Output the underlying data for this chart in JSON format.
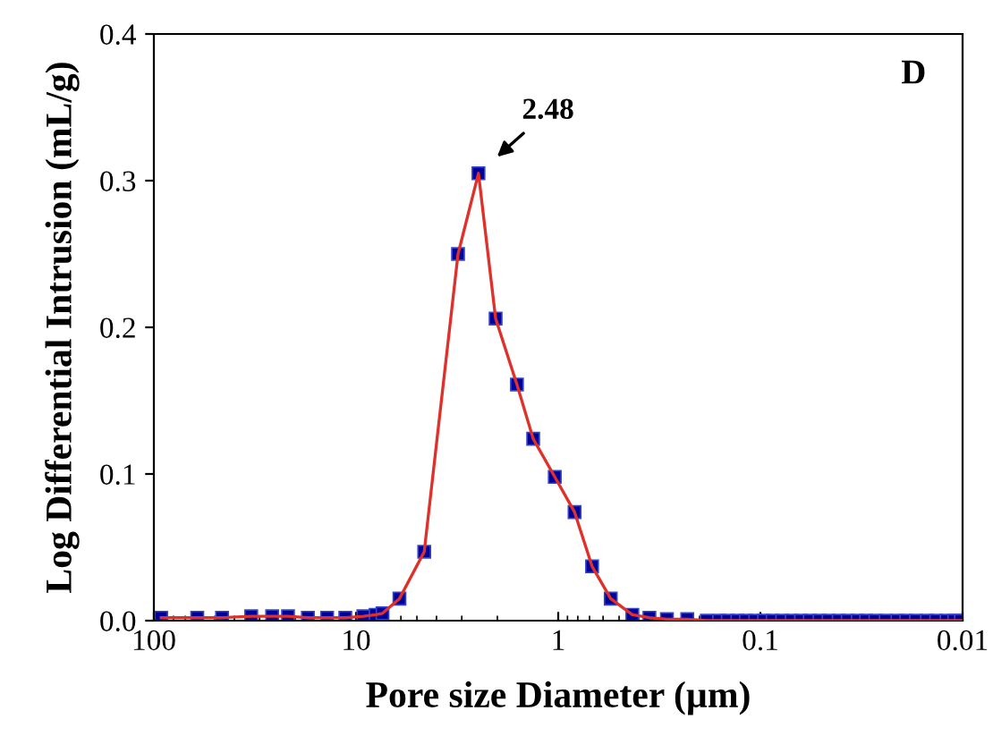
{
  "chart_data": {
    "type": "line",
    "xlabel": "Pore size Diameter (µm)",
    "ylabel": "Log Differential Intrusion (mL/g)",
    "annotations": [
      {
        "text": "2.48",
        "x": 2.48,
        "y": 0.305
      },
      "D"
    ],
    "log": "x",
    "xlim": [
      100,
      0.01
    ],
    "xticks": [
      100,
      10,
      1,
      0.1,
      0.01
    ],
    "ylim": [
      0,
      0.4
    ],
    "yticks": [
      {
        "value": 0,
        "label": "0.0"
      },
      {
        "value": 0.1,
        "label": "0.1"
      },
      {
        "value": 0.2,
        "label": "0.2"
      },
      {
        "value": 0.3,
        "label": "0.3"
      },
      {
        "value": 0.4,
        "label": "0.4"
      }
    ],
    "grid": false,
    "marker": "square",
    "line_style": "solid",
    "series": [
      {
        "color": "#e0302a",
        "x": [
          92,
          61,
          46,
          33,
          26,
          21.7,
          17.3,
          13.9,
          11.3,
          9.2,
          8.0,
          7.4,
          6.1,
          4.6,
          3.13,
          2.48,
          2.04,
          1.6,
          1.33,
          1.04,
          0.83,
          0.68,
          0.55,
          0.43,
          0.354,
          0.29,
          0.23,
          0.184,
          0.16,
          0.145,
          0.13,
          0.118,
          0.106,
          0.096,
          0.087,
          0.078,
          0.07,
          0.063,
          0.057,
          0.051,
          0.046,
          0.041,
          0.037,
          0.033,
          0.03,
          0.027,
          0.024,
          0.021,
          0.019,
          0.017,
          0.015,
          0.0135,
          0.012,
          0.011,
          0.0102
        ],
        "values": [
          0.002,
          0.002,
          0.002,
          0.003,
          0.003,
          0.003,
          0.002,
          0.002,
          0.002,
          0.003,
          0.004,
          0.005,
          0.015,
          0.047,
          0.25,
          0.305,
          0.206,
          0.161,
          0.124,
          0.098,
          0.074,
          0.037,
          0.015,
          0.004,
          0.002,
          0.001,
          0.001,
          0,
          0,
          0,
          0,
          0,
          0,
          0,
          0,
          0,
          0,
          0,
          0,
          0,
          0,
          0,
          0,
          0,
          0,
          0,
          0,
          0,
          0,
          0,
          0,
          0,
          0,
          0,
          0
        ]
      }
    ]
  }
}
